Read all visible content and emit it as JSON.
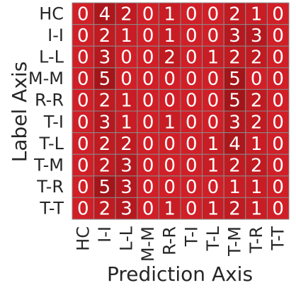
{
  "chart_data": {
    "type": "heatmap",
    "xlabel": "Prediction Axis",
    "ylabel": "Label Axis",
    "x_categories": [
      "HC",
      "I-I",
      "L-L",
      "M-M",
      "R-R",
      "T-I",
      "T-L",
      "T-M",
      "T-R",
      "T-T"
    ],
    "y_categories": [
      "HC",
      "I-I",
      "L-L",
      "M-M",
      "R-R",
      "T-I",
      "T-L",
      "T-M",
      "T-R",
      "T-T"
    ],
    "values": [
      [
        0,
        4,
        2,
        0,
        1,
        0,
        0,
        2,
        1,
        0
      ],
      [
        0,
        2,
        1,
        0,
        1,
        0,
        0,
        3,
        3,
        0
      ],
      [
        0,
        3,
        0,
        0,
        2,
        0,
        1,
        2,
        2,
        0
      ],
      [
        0,
        5,
        0,
        0,
        0,
        0,
        0,
        5,
        0,
        0
      ],
      [
        0,
        2,
        1,
        0,
        0,
        0,
        0,
        5,
        2,
        0
      ],
      [
        0,
        3,
        1,
        0,
        1,
        0,
        0,
        3,
        2,
        0
      ],
      [
        0,
        2,
        2,
        0,
        0,
        0,
        1,
        4,
        1,
        0
      ],
      [
        0,
        2,
        3,
        0,
        0,
        0,
        1,
        2,
        2,
        0
      ],
      [
        0,
        5,
        3,
        0,
        0,
        0,
        0,
        1,
        1,
        0
      ],
      [
        0,
        2,
        3,
        0,
        1,
        0,
        1,
        2,
        1,
        0
      ]
    ],
    "colormap": {
      "low": "#d11f27",
      "high": "#a31519"
    },
    "grid_color": "#8a8a8a"
  }
}
